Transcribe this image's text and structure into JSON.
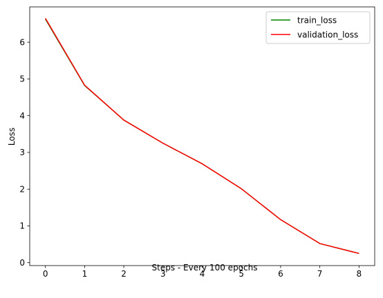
{
  "chart_data": {
    "type": "line",
    "title": "",
    "xlabel": "Steps - Every 100 epochs",
    "ylabel": "Loss",
    "xlim": [
      -0.4,
      8.4
    ],
    "ylim": [
      -0.08,
      6.96
    ],
    "xticks": [
      0,
      1,
      2,
      3,
      4,
      5,
      6,
      7,
      8
    ],
    "yticks": [
      0,
      1,
      2,
      3,
      4,
      5,
      6
    ],
    "grid": false,
    "legend_position": "upper-right",
    "x": [
      0,
      1,
      2,
      3,
      4,
      5,
      6,
      7,
      8
    ],
    "series": [
      {
        "name": "train_loss",
        "color": "#008000",
        "values": [
          6.63,
          4.82,
          3.88,
          3.25,
          2.69,
          2.01,
          1.17,
          0.52,
          0.25
        ]
      },
      {
        "name": "validation_loss",
        "color": "#ff0000",
        "values": [
          6.65,
          4.83,
          3.88,
          3.25,
          2.69,
          2.01,
          1.17,
          0.52,
          0.25
        ]
      }
    ]
  }
}
